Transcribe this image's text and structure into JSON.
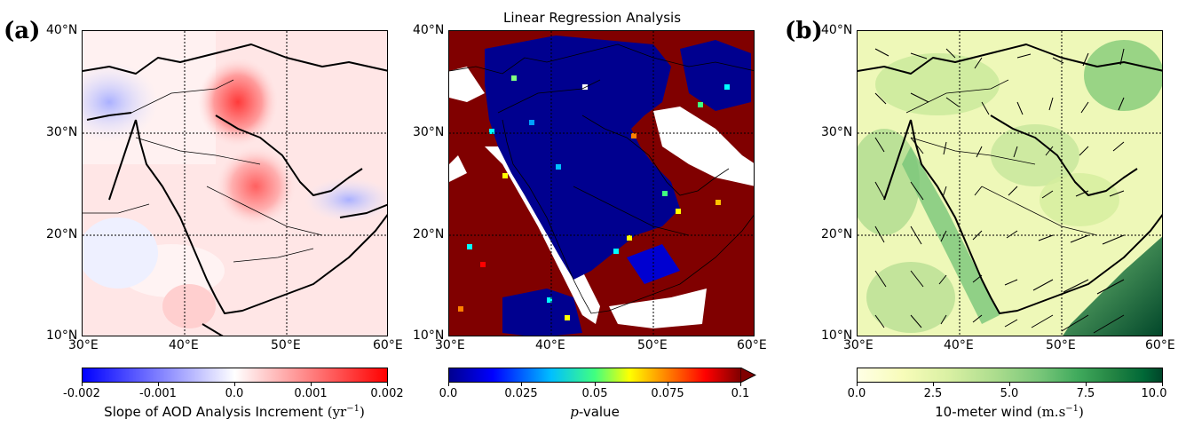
{
  "panels": {
    "a": {
      "letter": "(a)"
    },
    "b": {
      "letter": "(b)"
    },
    "middle": {
      "title": "Linear Regression Analysis"
    }
  },
  "axes": {
    "lat_labels": [
      "40°N",
      "30°N",
      "20°N",
      "10°N"
    ],
    "lon_labels": [
      "30°E",
      "40°E",
      "50°E",
      "60°E"
    ],
    "lon_labels_mid": [
      "30°E",
      "40°E",
      "50°E",
      "60°E"
    ]
  },
  "colorbars": {
    "aod": {
      "ticks": [
        "-0.002",
        "-0.001",
        "0.0",
        "0.001",
        "0.002"
      ],
      "label_prefix": "Slope of AOD Analysis Increment ",
      "label_unit": "(yr",
      "label_exp": "−1",
      "label_close": ")",
      "colors": [
        "#0000ff",
        "#ffffff",
        "#ff0000"
      ]
    },
    "pvalue": {
      "ticks": [
        "0.0",
        "0.025",
        "0.05",
        "0.075",
        "0.1"
      ],
      "label_italic": "p",
      "label_rest": "-value",
      "colors": [
        "#00008f",
        "#0000ff",
        "#00ffff",
        "#ffff00",
        "#ff0000",
        "#800000"
      ]
    },
    "wind": {
      "ticks": [
        "0.0",
        "2.5",
        "5.0",
        "7.5",
        "10.0"
      ],
      "label_prefix": "10-meter wind ",
      "label_unit": "(m.s",
      "label_exp": "−1",
      "label_close": ")",
      "colors": [
        "#ffffe5",
        "#d9f0a3",
        "#78c679",
        "#238443",
        "#004529"
      ]
    }
  }
}
